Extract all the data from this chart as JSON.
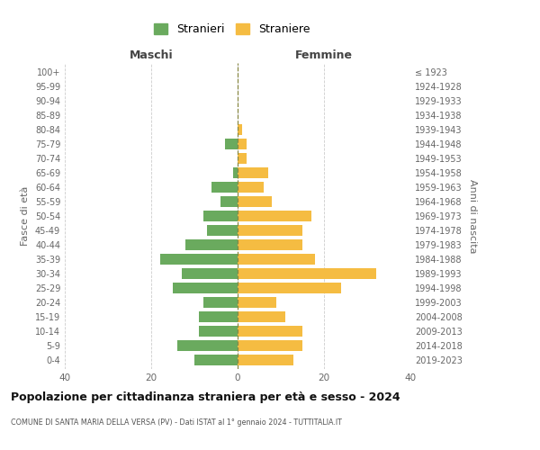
{
  "age_groups": [
    "0-4",
    "5-9",
    "10-14",
    "15-19",
    "20-24",
    "25-29",
    "30-34",
    "35-39",
    "40-44",
    "45-49",
    "50-54",
    "55-59",
    "60-64",
    "65-69",
    "70-74",
    "75-79",
    "80-84",
    "85-89",
    "90-94",
    "95-99",
    "100+"
  ],
  "birth_years": [
    "2019-2023",
    "2014-2018",
    "2009-2013",
    "2004-2008",
    "1999-2003",
    "1994-1998",
    "1989-1993",
    "1984-1988",
    "1979-1983",
    "1974-1978",
    "1969-1973",
    "1964-1968",
    "1959-1963",
    "1954-1958",
    "1949-1953",
    "1944-1948",
    "1939-1943",
    "1934-1938",
    "1929-1933",
    "1924-1928",
    "≤ 1923"
  ],
  "males": [
    10,
    14,
    9,
    9,
    8,
    15,
    13,
    18,
    12,
    7,
    8,
    4,
    6,
    1,
    0,
    3,
    0,
    0,
    0,
    0,
    0
  ],
  "females": [
    13,
    15,
    15,
    11,
    9,
    24,
    32,
    18,
    15,
    15,
    17,
    8,
    6,
    7,
    2,
    2,
    1,
    0,
    0,
    0,
    0
  ],
  "male_color": "#6aaa5e",
  "female_color": "#f5bc42",
  "title": "Popolazione per cittadinanza straniera per età e sesso - 2024",
  "subtitle": "COMUNE DI SANTA MARIA DELLA VERSA (PV) - Dati ISTAT al 1° gennaio 2024 - TUTTITALIA.IT",
  "xlabel_left": "Maschi",
  "xlabel_right": "Femmine",
  "ylabel_left": "Fasce di età",
  "ylabel_right": "Anni di nascita",
  "legend_male": "Stranieri",
  "legend_female": "Straniere",
  "xlim": 40,
  "background_color": "#ffffff",
  "grid_color": "#cccccc"
}
